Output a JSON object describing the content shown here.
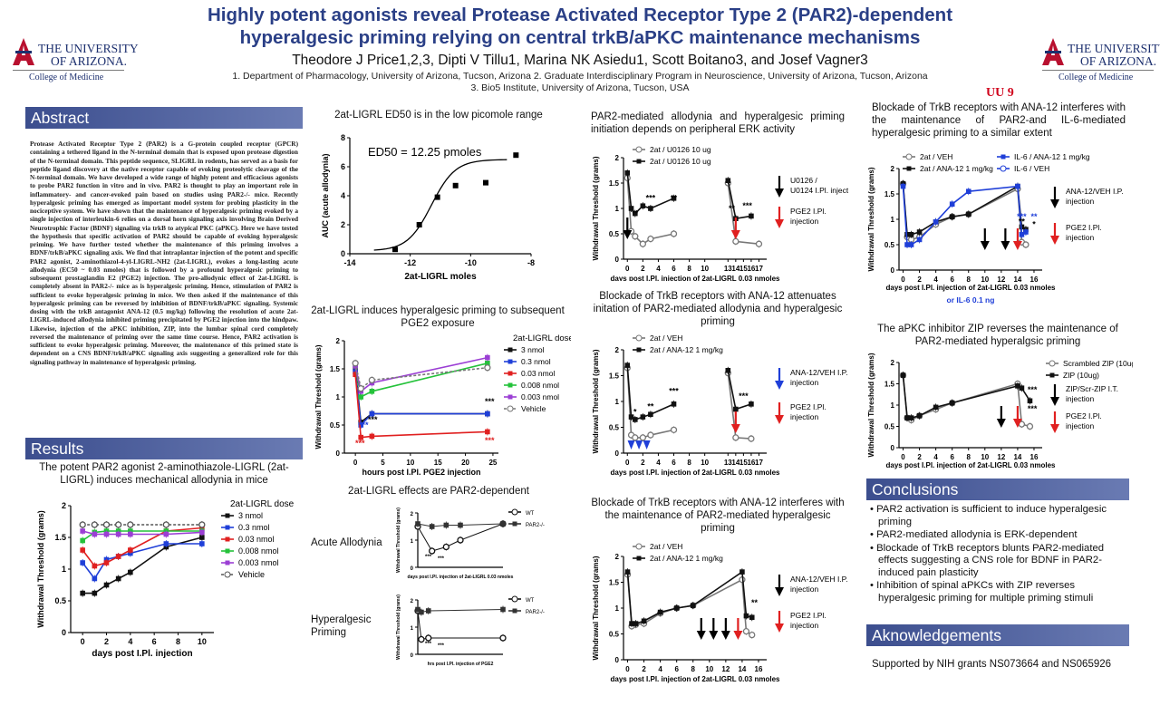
{
  "header": {
    "title_line1": "Highly potent agonists reveal Protease Activated Receptor Type 2 (PAR2)-dependent",
    "title_line2": "hyperalgesic priming relying on central trkB/aPKC maintenance mechanisms",
    "authors": "Theodore J Price1,2,3, Dipti V Tillu1, Marina NK Asiedu1, Scott Boitano3, and Josef Vagner3",
    "affil_line1": "1. Department of Pharmacology, University of Arizona, Tucson, Arizona  2. Graduate Interdisciplinary Program in Neuroscience, University of Arizona, Tucson, Arizona",
    "affil_line2": "3. Bio5 Institute, University of Arizona, Tucson, USA"
  },
  "logo": {
    "line1": "THE UNIVERSITY",
    "line2": "OF ARIZONA.",
    "college": "College of Medicine"
  },
  "uu9": "UU 9",
  "sections": {
    "abstract": "Abstract",
    "results": "Results",
    "conclusions": "Conclusions",
    "acknowledgements": "Aknowledgements"
  },
  "abstract_text": "Protease Activated Receptor Type 2 (PAR2) is a G-protein coupled receptor (GPCR) containing a tethered ligand in the N-terminal domain that is exposed upon protease digestion of the N-terminal domain. This peptide sequence, SLIGRL in rodents, has served as a basis for peptide ligand discovery at the native receptor capable of evoking proteolytic cleavage of the N-terminal domain. We have developed a wide range of highly potent and efficacious agonists to probe PAR2 function in vitro and in vivo. PAR2 is thought to play an important role in inflammatory- and cancer-evoked pain based on studies using PAR2-/- mice. Recently hyperalgesic priming has emerged as important model system for probing plasticity in the nociceptive system. We have shown that the maintenance of hyperalgesic priming evoked by a single injection of interleukin-6 relies on a dorsal horn signaling axis involving Brain Derived Neurotrophic Factor (BDNF) signaling via trkB to atypical PKC (aPKC). Here we have tested the hypothesis that specific activation of PAR2 should be capable of evoking hyperalgesic priming. We have further tested whether the maintenance of this priming involves a BDNF/trkB/aPKC signaling axis. We find that intraplantar injection of the potent and specific PAR2 agonist, 2-aminothiazol-4-yl-LIGRL-NH2 (2at-LIGRL), evokes a long-lasting acute allodynia (EC50 ~ 0.03 nmoles) that is followed by a profound hyperalgesic priming to subsequent prostaglandin E2 (PGE2) injection. The pro-allodynic effect of 2at-LIGRL is completely absent in PAR2-/- mice as is hyperalgesic priming. Hence, stimulation of PAR2 is sufficient to evoke hyperalgesic priming in mice. We then asked if the maintenance of this hyperalgesic priming can be reversed by inhibition of BDNF/trkB/aPKC signaling. Systemic dosing with the trkB antagonist ANA-12 (0.5 mg/kg) following the resolution of acute 2at-LIGRL-induced allodynia inhibited priming precipitated by PGE2 injection into the hindpaw. Likewise, injection of the aPKC inhibition, ZIP, into the lumbar spinal cord completely reversed the maintenance of priming over the same time course. Hence, PAR2 activation is sufficient to evoke hyperalgesic priming. Moreover, the maintenance of this primed state is dependent on a CNS BDNF/trkB/aPKC signaling axis suggesting a generalized role for this signaling pathway in maintenance of hyperalgesic priming.",
  "panels": {
    "p1_title": "The potent PAR2 agonist 2-aminothiazole-LIGRL (2at-LIGRL) induces mechanical allodynia in mice",
    "p2_title": "2at-LIGRL ED50 is in the low picomole range",
    "p3_title": "2at-LIGRL induces hyperalgesic priming to subsequent PGE2 exposure",
    "p4_title": "2at-LIGRL effects are PAR2-dependent",
    "p4_sub1": "Acute Allodynia",
    "p4_sub2": "Hyperalgesic Priming",
    "p5_title": "PAR2-mediated allodynia and hyperalgesic priming initiation depends on peripheral ERK activity",
    "p6_title": "Blockade of TrkB receptors with ANA-12 attenuates initation of PAR2-mediated allodynia and hyperalgesic priming",
    "p7_title": "Blockade of TrkB receptors with ANA-12 interferes with the maintenance of PAR2-mediated hyperalgesic priming",
    "p8_title": "Blockade of TrkB receptors with ANA-12 interferes with the maintenance of PAR2-and IL-6-mediated hyperalgesic priming to a similar extent",
    "p9_title": "The aPKC inhibitor ZIP reverses the maintenance of PAR2-mediated hyperalgsic priming"
  },
  "conclusions": [
    "PAR2 activation is sufficient to induce hyperalgesic priming",
    "PAR2-mediated allodynia is ERK-dependent",
    "Blockade of TrkB receptors blunts PAR2-mediated effects suggesting a CNS role for BDNF in PAR2-induced pain plasticity",
    "Inhibition of spinal aPKCs with ZIP reverses hyperalgesic priming for multiple priming stimuli"
  ],
  "acknowledgements": "Supported by NIH grants NS073664 and NS065926",
  "chart_data": [
    {
      "type": "line",
      "id": "dose_time",
      "xlabel": "days post I.Pl. injection",
      "ylabel": "Withdrawal Threshold (grams)",
      "legend_title": "2at-LIGRL dose",
      "xlim": [
        -1,
        11
      ],
      "ylim": [
        0,
        2.0
      ],
      "xticks": [
        0,
        2,
        4,
        6,
        8,
        10
      ],
      "yticks": [
        0.0,
        0.5,
        1.0,
        1.5,
        2.0
      ],
      "x": [
        0,
        1,
        2,
        3,
        4,
        7,
        10
      ],
      "series": [
        {
          "name": "3 nmol",
          "color": "#111111",
          "values": [
            0.62,
            0.62,
            0.75,
            0.85,
            0.95,
            1.35,
            1.5
          ]
        },
        {
          "name": "0.3 nmol",
          "color": "#1f3fd8",
          "values": [
            1.1,
            0.85,
            1.15,
            1.2,
            1.25,
            1.4,
            1.4
          ]
        },
        {
          "name": "0.03 nmol",
          "color": "#e02020",
          "values": [
            1.3,
            1.05,
            1.1,
            1.2,
            1.3,
            1.6,
            1.65
          ]
        },
        {
          "name": "0.008 nmol",
          "color": "#24c23a",
          "values": [
            1.45,
            1.58,
            1.6,
            1.6,
            1.6,
            1.6,
            1.6
          ]
        },
        {
          "name": "0.003 nmol",
          "color": "#9b3fd4",
          "values": [
            1.6,
            1.55,
            1.55,
            1.55,
            1.55,
            1.55,
            1.58
          ]
        },
        {
          "name": "Vehicle",
          "color": "#555555",
          "values": [
            1.7,
            1.7,
            1.7,
            1.7,
            1.7,
            1.7,
            1.7
          ]
        }
      ]
    },
    {
      "type": "scatter",
      "id": "ed50",
      "annotation": "ED50 = 12.25 pmoles",
      "xlabel": "2at-LIGRL moles",
      "ylabel": "AUC (acute allodynia)",
      "xlim": [
        -14,
        -8
      ],
      "ylim": [
        0,
        8
      ],
      "xticks": [
        -14,
        -12,
        -10,
        -8
      ],
      "yticks": [
        0,
        2,
        4,
        6,
        8
      ],
      "x": [
        -12.5,
        -11.7,
        -11.1,
        -10.5,
        -9.5,
        -8.5
      ],
      "values": [
        0.3,
        2.0,
        3.9,
        4.7,
        4.9,
        6.8
      ]
    },
    {
      "type": "line",
      "id": "priming_pge2",
      "xlabel": "hours post I.Pl. PGE2 injection",
      "ylabel": "Withdrawal Threshold (grams)",
      "legend_title": "2at-LIGRL dose",
      "xlim": [
        -2,
        26
      ],
      "ylim": [
        0,
        2.0
      ],
      "xticks": [
        0,
        5,
        10,
        15,
        20,
        25
      ],
      "yticks": [
        0.0,
        0.5,
        1.0,
        1.5,
        2.0
      ],
      "x": [
        0,
        1,
        3,
        24
      ],
      "series": [
        {
          "name": "3 nmol",
          "color": "#111111",
          "values": [
            1.5,
            0.55,
            0.7,
            0.7
          ]
        },
        {
          "name": "0.3 nmol",
          "color": "#1f3fd8",
          "values": [
            1.45,
            0.5,
            0.7,
            0.7
          ]
        },
        {
          "name": "0.03 nmol",
          "color": "#e02020",
          "values": [
            1.4,
            0.28,
            0.3,
            0.38
          ]
        },
        {
          "name": "0.008 nmol",
          "color": "#24c23a",
          "values": [
            1.55,
            1.0,
            1.1,
            1.6
          ]
        },
        {
          "name": "0.003 nmol",
          "color": "#9b3fd4",
          "values": [
            1.55,
            1.1,
            1.25,
            1.7
          ]
        },
        {
          "name": "Vehicle",
          "color": "#777777",
          "values": [
            1.6,
            1.15,
            1.3,
            1.52
          ]
        }
      ],
      "annotations": [
        "***",
        "***",
        "***",
        "***",
        "***"
      ]
    },
    {
      "type": "line",
      "id": "par2_ko_acute",
      "xlabel": "days post I.Pl. injection of 2at-LIGRL 0.03 nmoles",
      "ylabel": "Withdrawal Threshold (grams)",
      "ylim": [
        0,
        2.0
      ],
      "series": [
        {
          "name": "WT",
          "values": [
            1.5,
            0.6,
            0.75,
            1.0,
            1.6
          ]
        },
        {
          "name": "PAR2-/-",
          "values": [
            1.6,
            1.5,
            1.55,
            1.55,
            1.6
          ]
        }
      ]
    },
    {
      "type": "line",
      "id": "par2_ko_priming",
      "xlabel": "hrs post I.Pl. injection of PGE2",
      "ylabel": "Withdrawal Threshold (grams)",
      "ylim": [
        0,
        2.0
      ],
      "series": [
        {
          "name": "WT",
          "values": [
            1.6,
            0.55,
            0.6,
            0.6
          ]
        },
        {
          "name": "PAR2-/-",
          "values": [
            1.65,
            1.55,
            1.6,
            1.65
          ]
        }
      ]
    },
    {
      "type": "line",
      "id": "erk_u0126",
      "xlabel": "days post I.Pl. injection of 2at-LIGRL 0.03 nmoles",
      "ylabel": "Withdrawal Threshold (grams)",
      "legend": [
        "2at / U0126 10 ug",
        "2at / U0126 10 ug"
      ],
      "annotation_labels": [
        "U0126 / U0124 I.Pl. injection",
        "PGE2 I.Pl. injection"
      ],
      "ylim": [
        0,
        2.0
      ],
      "xticks": [
        0,
        2,
        4,
        6,
        8,
        10,
        13,
        14,
        15,
        16,
        17
      ]
    },
    {
      "type": "line",
      "id": "ana12_initiation",
      "xlabel": "days post I.Pl. injection of 2at-LIGRL 0.03 nmoles",
      "ylabel": "Withdrawal Threshold (grams)",
      "legend": [
        "2at / VEH",
        "2at / ANA-12 1 mg/kg"
      ],
      "annotation_labels": [
        "ANA-12/VEH I.P. injection",
        "PGE2 I.Pl. injection"
      ],
      "ylim": [
        0,
        2.0
      ],
      "xticks": [
        0,
        2,
        4,
        6,
        8,
        10,
        13,
        14,
        15,
        16,
        17
      ]
    },
    {
      "type": "line",
      "id": "ana12_maintenance",
      "xlabel": "days post I.Pl. injection of 2at-LIGRL 0.03 nmoles",
      "ylabel": "Withdrawal Threshold (grams)",
      "legend": [
        "2at / VEH",
        "2at / ANA-12 1 mg/kg"
      ],
      "annotation_labels": [
        "ANA-12/VEH I.P. injection",
        "PGE2 I.Pl. injection"
      ],
      "ylim": [
        0,
        2.0
      ],
      "xticks": [
        0,
        2,
        4,
        6,
        8,
        10,
        12,
        14,
        16
      ]
    },
    {
      "type": "line",
      "id": "ana12_il6",
      "xlabel": "days post I.Pl. injection of 2at-LIGRL 0.03 nmoles",
      "xlabel2": "or IL-6 0.1 ng",
      "ylabel": "Withdrawal Threshold (grams)",
      "legend": [
        "2at / VEH",
        "2at / ANA-12 1 mg/kg",
        "IL-6 / ANA-12 1 mg/kg",
        "IL-6 / VEH"
      ],
      "annotation_labels": [
        "ANA-12/VEH I.P. injection",
        "PGE2 I.Pl. injection"
      ],
      "ylim": [
        0,
        2.0
      ],
      "xticks": [
        0,
        2,
        4,
        6,
        8,
        10,
        12,
        14,
        16
      ]
    },
    {
      "type": "line",
      "id": "zip",
      "xlabel": "days post I.Pl. injection of 2at-LIGRL 0.03 nmoles",
      "ylabel": "Withdrawal Threshold (grams)",
      "legend": [
        "Scrambled ZIP (10ug)",
        "ZIP (10ug)"
      ],
      "annotation_labels": [
        "ZIP/Scr-ZIP I.T. injection",
        "PGE2 I.Pl. injection"
      ],
      "ylim": [
        0,
        2.0
      ],
      "xticks": [
        0,
        2,
        4,
        6,
        8,
        10,
        12,
        14,
        16
      ]
    }
  ]
}
